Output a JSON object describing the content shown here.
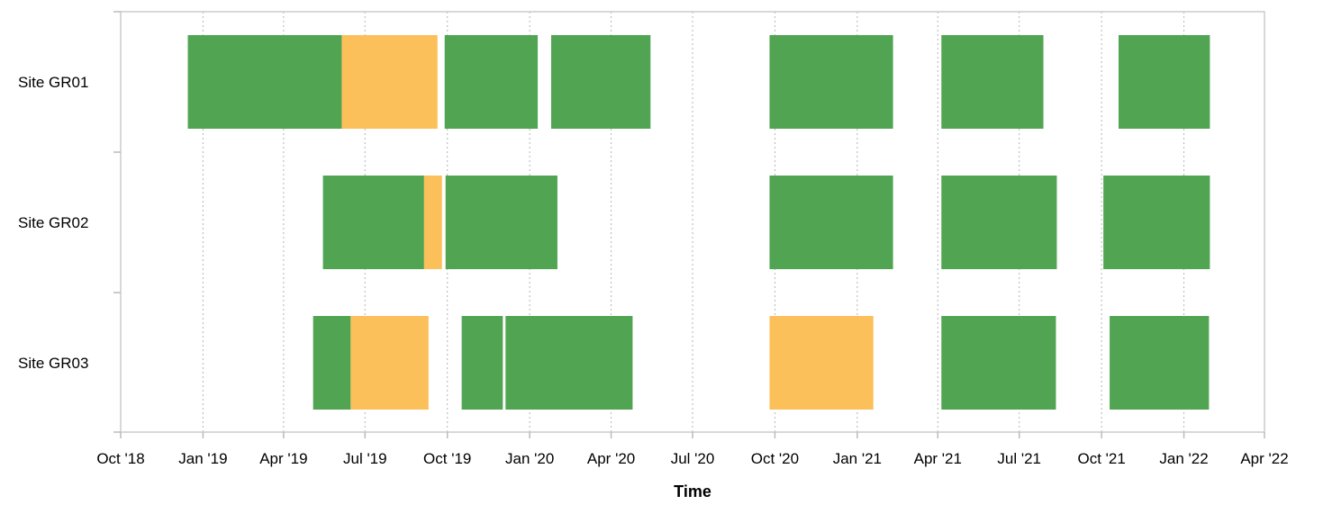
{
  "chart_data": {
    "type": "timeline",
    "title": "",
    "xlabel": "Time",
    "ylabel": "",
    "x_ticks": [
      "Oct '18",
      "Jan '19",
      "Apr '19",
      "Jul '19",
      "Oct '19",
      "Jan '20",
      "Apr '20",
      "Jul '20",
      "Oct '20",
      "Jan '21",
      "Apr '21",
      "Jul '21",
      "Oct '21",
      "Jan '22",
      "Apr '22"
    ],
    "x_tick_dates": [
      "2018-10-01",
      "2019-01-01",
      "2019-04-01",
      "2019-07-01",
      "2019-10-01",
      "2020-01-01",
      "2020-04-01",
      "2020-07-01",
      "2020-10-01",
      "2021-01-01",
      "2021-04-01",
      "2021-07-01",
      "2021-10-01",
      "2022-01-01",
      "2022-04-01"
    ],
    "xlim": [
      "2018-10-01",
      "2022-04-01"
    ],
    "grid": "vertical dotted",
    "colors": {
      "green": "#51a552",
      "orange": "#fcc05b"
    },
    "categories": [
      "Site GR01",
      "Site GR02",
      "Site GR03"
    ],
    "segments": [
      {
        "category": "Site GR01",
        "start": "2018-12-15",
        "end": "2019-06-05",
        "color": "green"
      },
      {
        "category": "Site GR01",
        "start": "2019-06-05",
        "end": "2019-09-20",
        "color": "orange"
      },
      {
        "category": "Site GR01",
        "start": "2019-09-28",
        "end": "2020-01-10",
        "color": "green"
      },
      {
        "category": "Site GR01",
        "start": "2020-01-25",
        "end": "2020-05-15",
        "color": "green"
      },
      {
        "category": "Site GR01",
        "start": "2020-09-25",
        "end": "2021-02-10",
        "color": "green"
      },
      {
        "category": "Site GR01",
        "start": "2021-04-05",
        "end": "2021-07-28",
        "color": "green"
      },
      {
        "category": "Site GR01",
        "start": "2021-10-20",
        "end": "2022-01-30",
        "color": "green"
      },
      {
        "category": "Site GR02",
        "start": "2019-05-15",
        "end": "2019-09-05",
        "color": "green"
      },
      {
        "category": "Site GR02",
        "start": "2019-09-05",
        "end": "2019-09-25",
        "color": "orange"
      },
      {
        "category": "Site GR02",
        "start": "2019-09-29",
        "end": "2020-02-01",
        "color": "green"
      },
      {
        "category": "Site GR02",
        "start": "2020-09-25",
        "end": "2021-02-10",
        "color": "green"
      },
      {
        "category": "Site GR02",
        "start": "2021-04-05",
        "end": "2021-08-12",
        "color": "green"
      },
      {
        "category": "Site GR02",
        "start": "2021-10-03",
        "end": "2022-01-30",
        "color": "green"
      },
      {
        "category": "Site GR03",
        "start": "2019-05-04",
        "end": "2019-06-15",
        "color": "green"
      },
      {
        "category": "Site GR03",
        "start": "2019-06-15",
        "end": "2019-09-10",
        "color": "orange"
      },
      {
        "category": "Site GR03",
        "start": "2019-10-17",
        "end": "2019-12-02",
        "color": "green"
      },
      {
        "category": "Site GR03",
        "start": "2019-12-05",
        "end": "2020-04-25",
        "color": "green"
      },
      {
        "category": "Site GR03",
        "start": "2020-09-25",
        "end": "2021-01-19",
        "color": "orange"
      },
      {
        "category": "Site GR03",
        "start": "2021-04-05",
        "end": "2021-08-11",
        "color": "green"
      },
      {
        "category": "Site GR03",
        "start": "2021-10-10",
        "end": "2022-01-29",
        "color": "green"
      }
    ]
  }
}
